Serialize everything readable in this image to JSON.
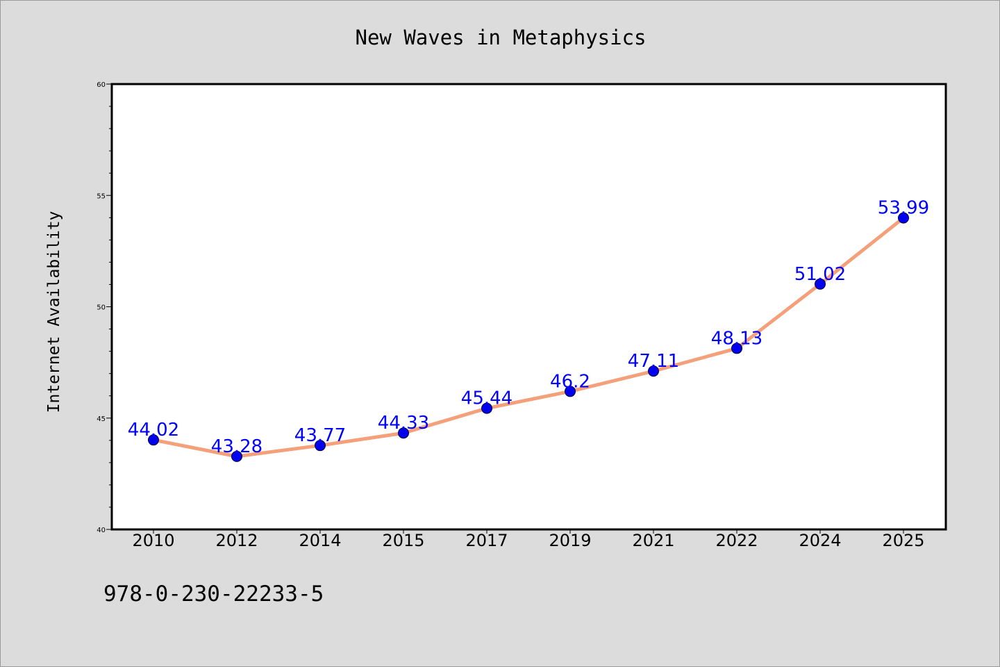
{
  "chart_data": {
    "type": "line",
    "title": "New Waves in Metaphysics",
    "xlabel": "",
    "ylabel": "Internet Availability",
    "categories": [
      "2010",
      "2012",
      "2014",
      "2015",
      "2017",
      "2019",
      "2021",
      "2022",
      "2024",
      "2025"
    ],
    "series": [
      {
        "values": [
          44.02,
          43.28,
          43.77,
          44.33,
          45.44,
          46.2,
          47.11,
          48.13,
          51.02,
          53.99
        ],
        "data_labels": [
          "44.02",
          "43.28",
          "43.77",
          "44.33",
          "45.44",
          "46.2",
          "47.11",
          "48.13",
          "51.02",
          "53.99"
        ],
        "line_color": "#f4a07a",
        "marker_color": "#0000ee",
        "label_color": "#0000ff"
      }
    ],
    "ylim": [
      40,
      60
    ],
    "yticks": [
      "40",
      "45",
      "50",
      "55",
      "60"
    ],
    "grid": false,
    "legend": "none"
  },
  "footer": {
    "isbn": "978-0-230-22233-5"
  },
  "colors": {
    "background": "#dcdcdc",
    "plot_background": "#ffffff"
  }
}
